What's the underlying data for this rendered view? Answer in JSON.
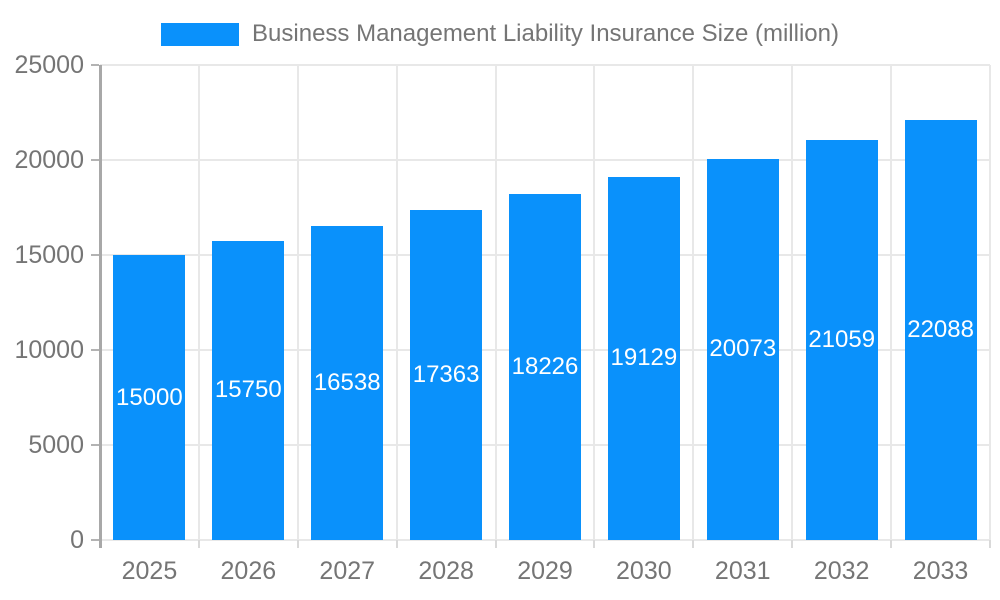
{
  "legend": {
    "label": "Business Management Liability Insurance Size (million)"
  },
  "chart_data": {
    "type": "bar",
    "title": "Business Management Liability Insurance Size (million)",
    "categories": [
      "2025",
      "2026",
      "2027",
      "2028",
      "2029",
      "2030",
      "2031",
      "2032",
      "2033"
    ],
    "values": [
      15000,
      15750,
      16538,
      17363,
      18226,
      19129,
      20073,
      21059,
      22088
    ],
    "xlabel": "",
    "ylabel": "",
    "ylim": [
      0,
      25000
    ],
    "yticks": [
      0,
      5000,
      10000,
      15000,
      20000,
      25000
    ],
    "grid": true,
    "legend_position": "top",
    "bar_labels_inside": true,
    "colors": {
      "bar": "#0a91fb",
      "bar_label_text": "#ffffff",
      "axis_line": "#a8a8a8",
      "y_tick_mark": "#b3b3b3",
      "x_tick_mark": "#d9d9d9",
      "gridline": "#e8e8e8",
      "tick_text": "#757575",
      "legend_text": "#757575",
      "background": "#ffffff"
    }
  }
}
